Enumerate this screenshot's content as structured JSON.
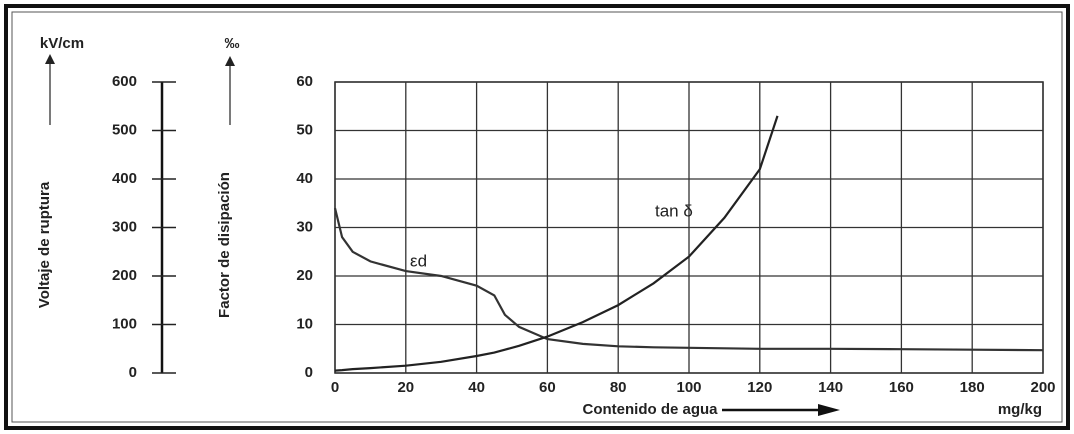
{
  "chart_data": {
    "type": "line",
    "y_axis_label": "Factor de disipación",
    "y_unit": "‰",
    "y2_axis_label": "Voltaje de ruptura",
    "y2_unit": "kV/cm",
    "x_axis_label": "Contenido de agua",
    "x_unit": "mg/kg",
    "x": [
      0,
      2,
      5,
      10,
      20,
      30,
      40,
      45,
      48,
      52,
      60,
      70,
      80,
      90,
      100,
      110,
      120,
      125,
      140,
      160,
      180,
      200
    ],
    "series": [
      {
        "name": "εd",
        "color": "#333333",
        "values": [
          34,
          28,
          25,
          23,
          21,
          20,
          18,
          16,
          12,
          9.5,
          7,
          6,
          5.5,
          5.3,
          5.2,
          5.1,
          5,
          5,
          5,
          4.9,
          4.8,
          4.7
        ]
      },
      {
        "name": "tan δ",
        "color": "#222222",
        "values": [
          0.5,
          0.6,
          0.8,
          1,
          1.5,
          2.3,
          3.5,
          4.2,
          4.8,
          5.6,
          7.5,
          10.5,
          14,
          18.5,
          24,
          32,
          42,
          53,
          null,
          null,
          null,
          null
        ]
      }
    ],
    "xlim": [
      0,
      200
    ],
    "xticks": [
      0,
      20,
      40,
      60,
      80,
      100,
      120,
      140,
      160,
      180,
      200
    ],
    "ylim": [
      0,
      60
    ],
    "yticks": [
      0,
      10,
      20,
      30,
      40,
      50,
      60
    ],
    "y2lim": [
      0,
      600
    ],
    "y2ticks": [
      0,
      100,
      200,
      300,
      400,
      500,
      600
    ],
    "grid": true
  }
}
